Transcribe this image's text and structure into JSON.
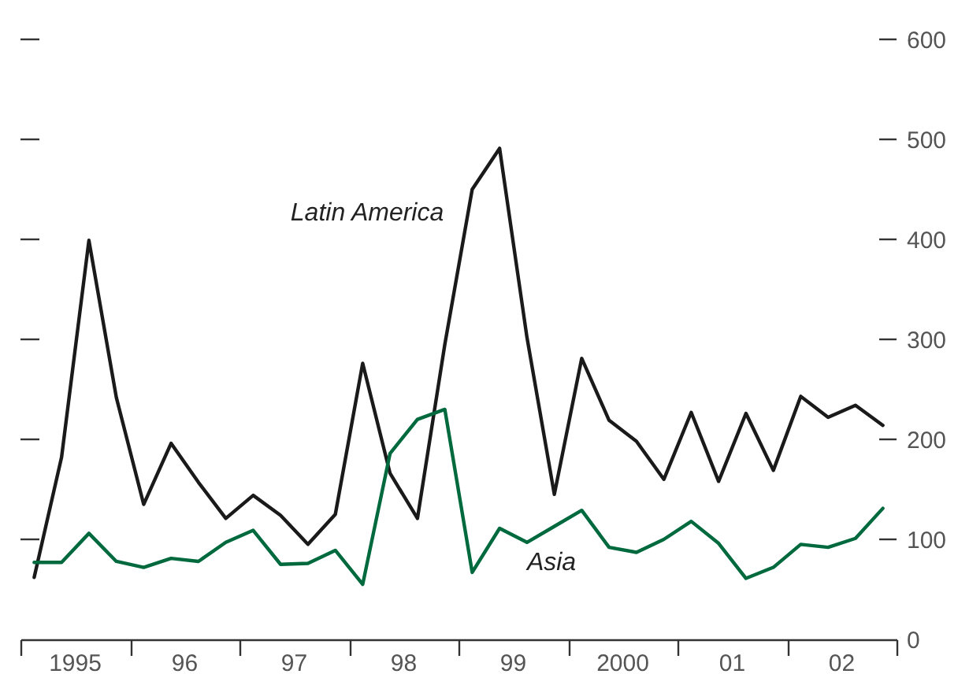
{
  "chart_data": {
    "type": "line",
    "x": [
      1994.625,
      1994.875,
      1995.125,
      1995.375,
      1995.625,
      1995.875,
      1996.125,
      1996.375,
      1996.625,
      1996.875,
      1997.125,
      1997.375,
      1997.625,
      1997.875,
      1998.125,
      1998.375,
      1998.625,
      1998.875,
      1999.125,
      1999.375,
      1999.625,
      1999.875,
      2000.125,
      2000.375,
      2000.625,
      2000.875,
      2001.125,
      2001.375,
      2001.625,
      2001.875,
      2002.125,
      2002.375
    ],
    "series": [
      {
        "color": "#1a1a1a",
        "values": [
          62,
          182,
          399,
          242,
          135,
          196,
          157,
          121,
          144,
          124,
          95,
          125,
          276,
          166,
          121,
          295,
          450,
          491,
          302,
          145,
          281,
          219,
          198,
          160,
          227,
          158,
          226,
          169,
          243,
          222,
          234,
          214
        ]
      },
      {
        "color": "#00693e",
        "values": [
          77,
          77,
          106,
          78,
          72,
          81,
          78,
          97,
          109,
          75,
          76,
          89,
          55,
          186,
          220,
          230,
          67,
          111,
          97,
          113,
          129,
          92,
          87,
          100,
          118,
          96,
          61,
          72,
          95,
          92,
          101,
          131
        ]
      }
    ],
    "annotations": [
      "Latin America",
      "Asia"
    ],
    "xlim": [
      1994.5,
      2002.5
    ],
    "xticks": [
      {
        "value": 1994.5,
        "label": null
      },
      {
        "value": 1995.5,
        "label": null
      },
      {
        "value": 1996.5,
        "label": null
      },
      {
        "value": 1997.5,
        "label": null
      },
      {
        "value": 1998.5,
        "label": null
      },
      {
        "value": 1999.5,
        "label": null
      },
      {
        "value": 2000.5,
        "label": null
      },
      {
        "value": 2001.5,
        "label": null
      },
      {
        "value": 2002.5,
        "label": null
      },
      {
        "value": 1995,
        "label": "1995"
      },
      {
        "value": 1996,
        "label": "96"
      },
      {
        "value": 1997,
        "label": "97"
      },
      {
        "value": 1998,
        "label": "98"
      },
      {
        "value": 1999,
        "label": "99"
      },
      {
        "value": 2000,
        "label": "2000"
      },
      {
        "value": 2001,
        "label": "01"
      },
      {
        "value": 2002,
        "label": "02"
      }
    ],
    "ylim": [
      0,
      600
    ],
    "yticks": [
      0,
      100,
      200,
      300,
      400,
      500,
      600
    ],
    "grid": false,
    "line_style": "solid",
    "marker": "none"
  }
}
